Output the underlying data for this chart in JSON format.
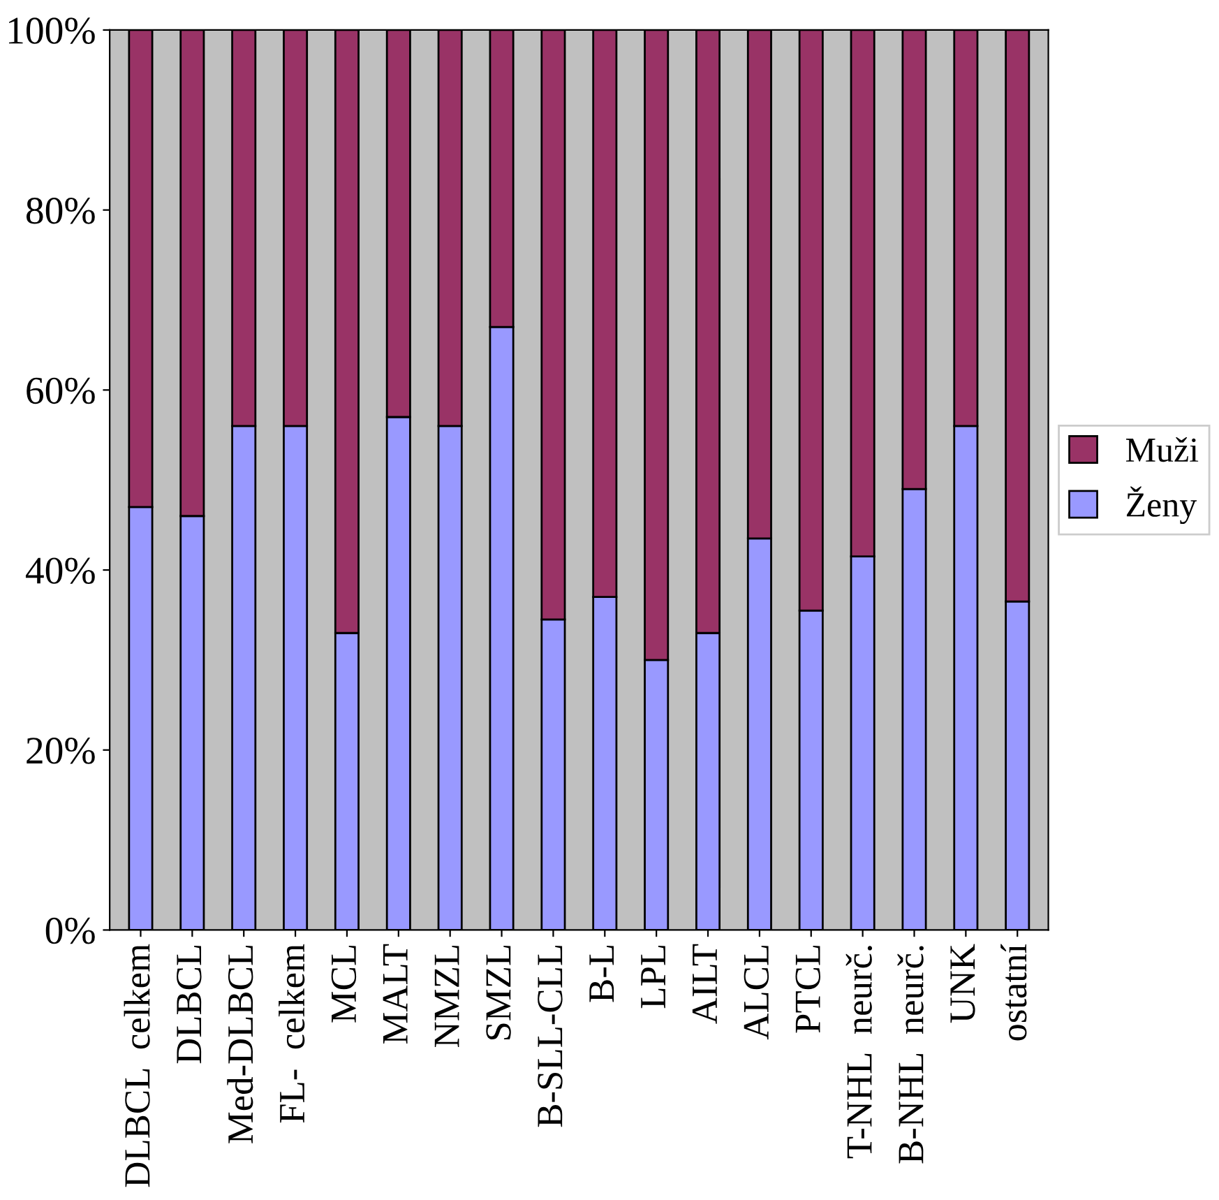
{
  "chart_data": {
    "type": "bar",
    "stacked": true,
    "categories": [
      "DLBCL  celkem",
      "DLBCL",
      "Med-DLBCL",
      "FL-  celkem",
      "MCL",
      "MALT",
      "NMZL",
      "SMZL",
      "B-SLL-CLL",
      "B-L",
      "LPL",
      "AILT",
      "ALCL",
      "PTCL",
      "T-NHL  neurč.",
      "B-NHL  neurč.",
      "UNK",
      "ostatní"
    ],
    "series": [
      {
        "name": "Ženy",
        "color": "#9999ff",
        "values": [
          47,
          46,
          56,
          56,
          33,
          57,
          56,
          67,
          34.5,
          37,
          30,
          33,
          43.5,
          35.5,
          41.5,
          49,
          56,
          36.5
        ]
      },
      {
        "name": "Muži",
        "color": "#993366",
        "values": [
          53,
          54,
          44,
          44,
          67,
          43,
          44,
          33,
          65.5,
          63,
          70,
          67,
          56.5,
          64.5,
          58.5,
          51,
          44,
          63.5
        ]
      }
    ],
    "ylim": [
      0,
      100
    ],
    "yticks": [
      {
        "value": 0,
        "label": "0%"
      },
      {
        "value": 20,
        "label": "20%"
      },
      {
        "value": 40,
        "label": "40%"
      },
      {
        "value": 60,
        "label": "60%"
      },
      {
        "value": 80,
        "label": "80%"
      },
      {
        "value": 100,
        "label": "100%"
      }
    ],
    "grid": false,
    "legend": "right"
  }
}
